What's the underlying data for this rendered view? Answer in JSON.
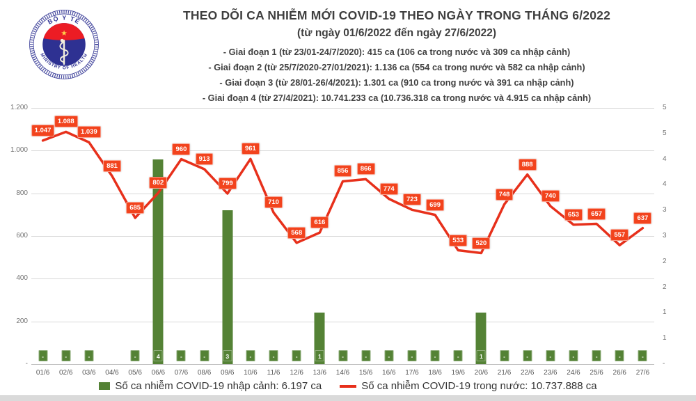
{
  "header": {
    "title": "THEO DÕI CA NHIỄM MỚI COVID-19 THEO NGÀY TRONG THÁNG 6/2022",
    "subtitle": "(từ ngày 01/6/2022 đến ngày 27/6/2022)",
    "info_lines": [
      "- Giai đoạn 1 (từ 23/01-24/7/2020): 415 ca (106 ca trong nước và 309 ca nhập cảnh)",
      "- Giai đoạn 2 (từ 25/7/2020-27/01/2021): 1.136 ca (554 ca trong nước và 582 ca nhập cảnh)",
      "- Giai đoạn 3 (từ 28/01-26/4/2021): 1.301 ca (910 ca trong nước và 391 ca nhập cảnh)",
      "- Giai đoạn 4 (từ 27/4/2021): 10.741.233 ca (10.736.318 ca trong nước và 4.915 ca nhập cảnh)"
    ],
    "logo": {
      "top_text": "BỘ Y TẾ",
      "bottom_text": "MINISTRY OF HEALTH",
      "star": "★",
      "navy": "#2e3192",
      "red": "#ec1c24",
      "yellow": "#ffd24a"
    }
  },
  "chart_data": {
    "type": "combo-bar-line",
    "categories": [
      "01/6",
      "02/6",
      "03/6",
      "04/6",
      "05/6",
      "06/6",
      "07/6",
      "08/6",
      "09/6",
      "10/6",
      "11/6",
      "12/6",
      "13/6",
      "14/6",
      "15/6",
      "16/6",
      "17/6",
      "18/6",
      "19/6",
      "20/6",
      "21/6",
      "22/6",
      "23/6",
      "24/6",
      "25/6",
      "26/6",
      "27/6"
    ],
    "series": [
      {
        "name": "Số ca nhiễm COVID-19 nhập cảnh",
        "type": "bar",
        "axis": "right",
        "color": "#548235",
        "values": [
          0,
          0,
          0,
          null,
          0,
          4,
          0,
          0,
          3,
          0,
          0,
          0,
          1,
          0,
          0,
          0,
          0,
          0,
          0,
          1,
          0,
          0,
          0,
          0,
          0,
          0,
          0
        ],
        "labels": [
          "-",
          "-",
          "-",
          "",
          "-",
          "4",
          "-",
          "-",
          "3",
          "-",
          "-",
          "-",
          "1",
          "-",
          "-",
          "-",
          "-",
          "-",
          "-",
          "1",
          "-",
          "-",
          "-",
          "-",
          "-",
          "-",
          "-"
        ]
      },
      {
        "name": "Số ca nhiễm COVID-19 trong nước",
        "type": "line",
        "axis": "left",
        "color": "#e7301b",
        "label_bg": "#f2431d",
        "values": [
          1047,
          1088,
          1039,
          881,
          685,
          802,
          960,
          913,
          799,
          961,
          710,
          568,
          616,
          856,
          866,
          774,
          723,
          699,
          533,
          520,
          748,
          888,
          740,
          653,
          657,
          557,
          637
        ],
        "labels": [
          "1.047",
          "1.088",
          "1.039",
          "881",
          "685",
          "802",
          "960",
          "913",
          "799",
          "961",
          "710",
          "568",
          "616",
          "856",
          "866",
          "774",
          "723",
          "699",
          "533",
          "520",
          "748",
          "888",
          "740",
          "653",
          "657",
          "557",
          "637"
        ]
      }
    ],
    "left_axis": {
      "min": 0,
      "max": 1200,
      "labels": [
        "1.200",
        "1.000",
        "800",
        "600",
        "400",
        "200",
        "-"
      ]
    },
    "right_axis": {
      "min": 0,
      "max": 5,
      "labels": [
        "5",
        "5",
        "4",
        "4",
        "3",
        "3",
        "2",
        "2",
        "1",
        "1",
        "-"
      ]
    },
    "grid": true,
    "legend_position": "bottom",
    "legend": [
      {
        "label": "Số ca nhiễm COVID-19 nhập cảnh: 6.197 ca",
        "swatch": "square",
        "color": "#548235"
      },
      {
        "label": "Số ca nhiễm COVID-19 trong nước: 10.737.888 ca",
        "swatch": "line",
        "color": "#e7301b"
      }
    ]
  }
}
